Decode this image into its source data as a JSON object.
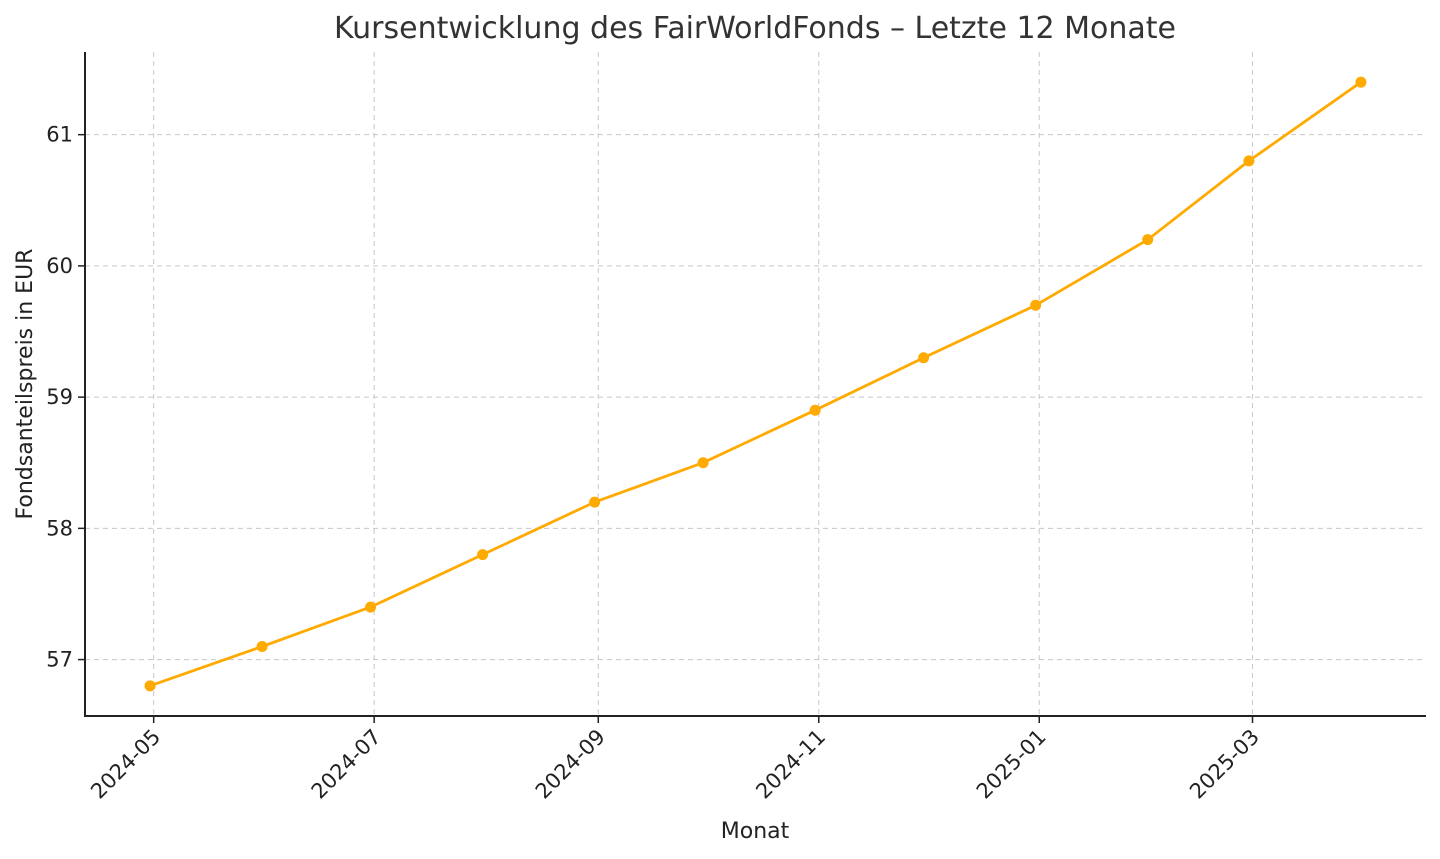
{
  "chart_data": {
    "type": "line",
    "title": "Kursentwicklung des FairWorldFonds – Letzte 12 Monate",
    "xlabel": "Monat",
    "ylabel": "Fondsanteilspreis in EUR",
    "x": [
      "2024-04-30",
      "2024-05-31",
      "2024-06-30",
      "2024-07-31",
      "2024-08-31",
      "2024-09-30",
      "2024-10-31",
      "2024-11-30",
      "2024-12-31",
      "2025-01-31",
      "2025-02-28",
      "2025-03-31"
    ],
    "values": [
      56.8,
      57.1,
      57.4,
      57.8,
      58.2,
      58.5,
      58.9,
      59.3,
      59.7,
      60.2,
      60.8,
      61.4
    ],
    "xticks": [
      "2024-05",
      "2024-07",
      "2024-09",
      "2024-11",
      "2025-01",
      "2025-03"
    ],
    "yticks": [
      57,
      58,
      59,
      60,
      61
    ],
    "ylim": [
      56.57,
      61.63
    ],
    "xlim": [
      "2024-04-12",
      "2025-04-18"
    ],
    "grid": true,
    "color": "#FFAA00"
  }
}
